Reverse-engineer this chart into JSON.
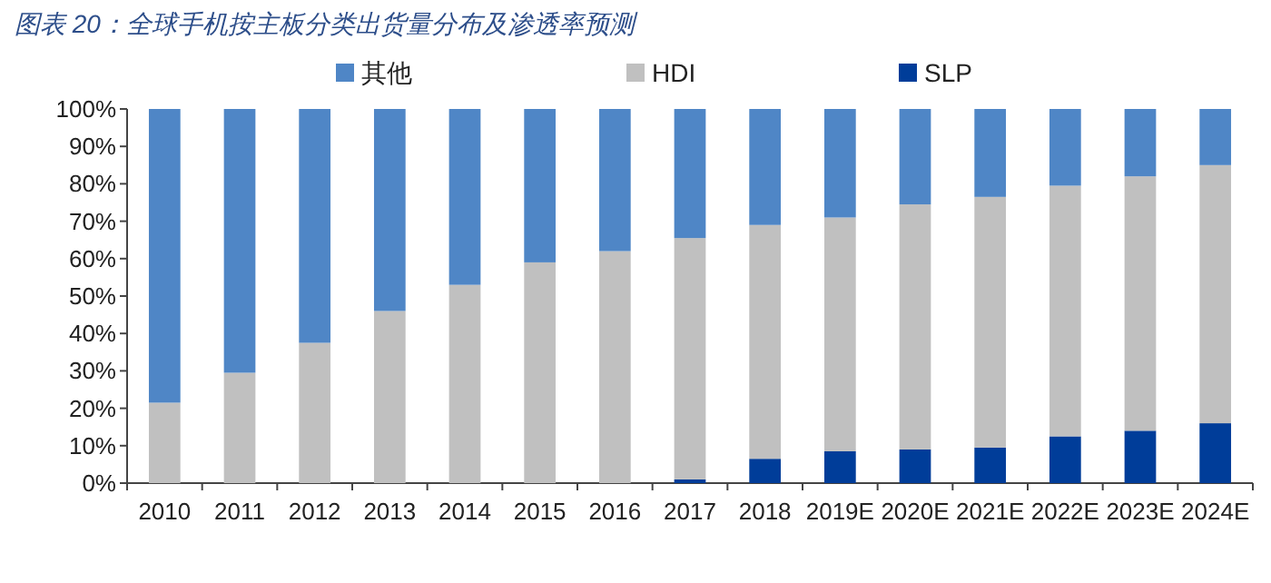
{
  "chart_data": {
    "type": "bar",
    "stacked": true,
    "title": "图表 20：全球手机按主板分类出货量分布及渗透率预测",
    "categories": [
      "2010",
      "2011",
      "2012",
      "2013",
      "2014",
      "2015",
      "2016",
      "2017",
      "2018",
      "2019E",
      "2020E",
      "2021E",
      "2022E",
      "2023E",
      "2024E"
    ],
    "series": [
      {
        "name": "SLP",
        "color": "#003d99",
        "values": [
          0,
          0,
          0,
          0,
          0,
          0,
          0,
          1,
          6.5,
          8.5,
          9,
          9.5,
          12.5,
          14,
          16
        ]
      },
      {
        "name": "HDI",
        "color": "#c0c0c0",
        "values": [
          21.5,
          29.5,
          37.5,
          46,
          53,
          59,
          62,
          64.5,
          62.5,
          62.5,
          65.5,
          67,
          67,
          68,
          69
        ]
      },
      {
        "name": "其他",
        "color": "#4f86c6",
        "values": [
          78.5,
          70.5,
          62.5,
          54,
          47,
          41,
          38,
          34.5,
          31,
          29,
          25.5,
          23.5,
          20.5,
          18,
          15
        ]
      }
    ],
    "ylim": [
      0,
      100
    ],
    "yticks": [
      {
        "value": 0,
        "label": "0%"
      },
      {
        "value": 10,
        "label": "10%"
      },
      {
        "value": 20,
        "label": "20%"
      },
      {
        "value": 30,
        "label": "30%"
      },
      {
        "value": 40,
        "label": "40%"
      },
      {
        "value": 50,
        "label": "50%"
      },
      {
        "value": 60,
        "label": "60%"
      },
      {
        "value": 70,
        "label": "70%"
      },
      {
        "value": 80,
        "label": "80%"
      },
      {
        "value": 90,
        "label": "90%"
      },
      {
        "value": 100,
        "label": "100%"
      }
    ],
    "legend": "top"
  }
}
